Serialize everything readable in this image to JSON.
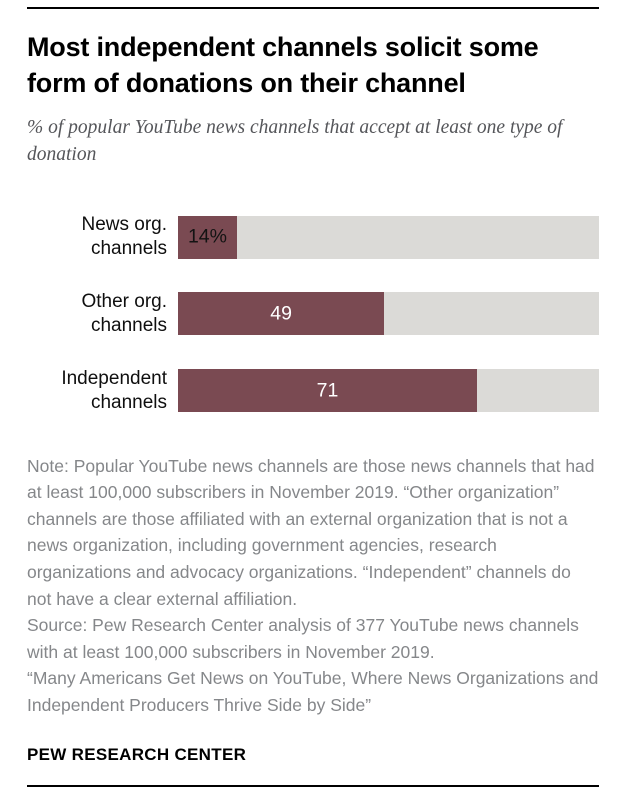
{
  "chart_data": {
    "type": "bar",
    "orientation": "horizontal",
    "title": "Most independent channels solicit some form of donations on their channel",
    "subtitle": "% of popular YouTube news channels that accept at least one type of donation",
    "categories": [
      "News org.\nchannels",
      "Other org.\nchannels",
      "Independent\nchannels"
    ],
    "values": [
      14,
      49,
      71
    ],
    "value_labels": [
      "14%",
      "49",
      "71"
    ],
    "unit": "%",
    "xlim": [
      0,
      100
    ],
    "grid": false,
    "legend": "none",
    "bar_color": "#7a4a52",
    "track_color": "#dbdad7"
  },
  "footer": {
    "note": "Note: Popular YouTube news channels are those news channels that had at least 100,000 subscribers in November 2019. “Other organization” channels are those affiliated with an external organization that is not a news organization, including government agencies, research organizations and advocacy organizations. “Independent” channels do not have a clear external affiliation.",
    "source": "Source: Pew Research Center analysis of 377 YouTube news channels with at least 100,000 subscribers in November 2019.",
    "report_title": "“Many Americans Get News on YouTube, Where News Organizations and Independent Producers Thrive Side by Side”",
    "brand": "PEW RESEARCH CENTER"
  }
}
